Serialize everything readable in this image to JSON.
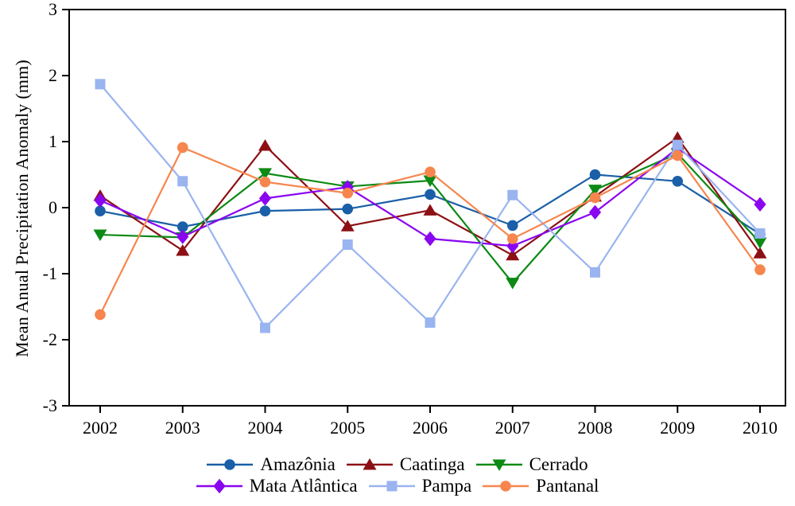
{
  "chart_data": {
    "type": "line",
    "ylabel": "Mean Anual Precipitation Anomaly (mm)",
    "xlabel": "",
    "x": [
      2002,
      2003,
      2004,
      2005,
      2006,
      2007,
      2008,
      2009,
      2010
    ],
    "x_tick_labels": [
      "2002",
      "2003",
      "2004",
      "2005",
      "2006",
      "2007",
      "2008",
      "2009",
      "2010"
    ],
    "y_ticks": [
      3,
      2,
      1,
      0,
      -1,
      -2,
      -3
    ],
    "y_tick_labels": [
      "3",
      "2",
      "1",
      "0",
      "-1",
      "-2",
      "-3"
    ],
    "ylim": [
      -3,
      3
    ],
    "grid": false,
    "legend_position": "bottom",
    "legend_rows": [
      [
        0,
        1,
        2
      ],
      [
        3,
        4,
        5
      ]
    ],
    "series": [
      {
        "name": "Amazônia",
        "color": "#1a5fa8",
        "marker": "circle",
        "values": [
          -0.05,
          -0.29,
          -0.05,
          -0.02,
          0.2,
          -0.27,
          0.5,
          0.4,
          -0.4
        ]
      },
      {
        "name": "Caatinga",
        "color": "#8c1014",
        "marker": "triangle-up",
        "values": [
          0.18,
          -0.65,
          0.94,
          -0.28,
          -0.04,
          -0.72,
          0.17,
          1.06,
          -0.69
        ]
      },
      {
        "name": "Cerrado",
        "color": "#0c8a14",
        "marker": "triangle-down",
        "values": [
          -0.41,
          -0.45,
          0.52,
          0.32,
          0.41,
          -1.14,
          0.27,
          0.82,
          -0.53
        ]
      },
      {
        "name": "Mata Atlântica",
        "color": "#8a05f0",
        "marker": "diamond",
        "values": [
          0.11,
          -0.44,
          0.14,
          0.31,
          -0.47,
          -0.58,
          -0.07,
          0.9,
          0.05
        ]
      },
      {
        "name": "Pampa",
        "color": "#9ab4f0",
        "marker": "square",
        "values": [
          1.87,
          0.4,
          -1.82,
          -0.56,
          -1.74,
          0.19,
          -0.98,
          0.95,
          -0.39
        ]
      },
      {
        "name": "Pantanal",
        "color": "#f6864e",
        "marker": "circle",
        "values": [
          -1.62,
          0.91,
          0.39,
          0.22,
          0.54,
          -0.47,
          0.15,
          0.79,
          -0.94
        ]
      }
    ],
    "axis_color": "#000000",
    "background": "#ffffff"
  }
}
